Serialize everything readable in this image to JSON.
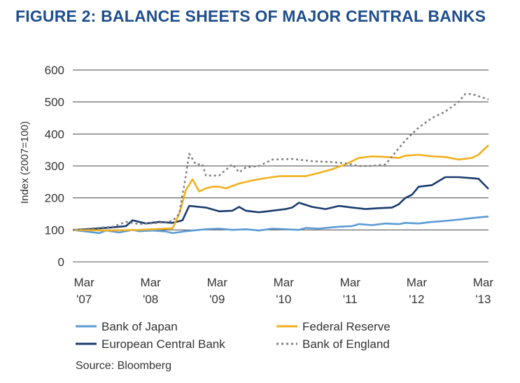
{
  "chart_data": {
    "type": "line",
    "title": "FIGURE 2: BALANCE SHEETS OF MAJOR CENTRAL BANKS",
    "ylabel": "Index (2007=100)",
    "ylim": [
      0,
      600
    ],
    "yticks": [
      "0",
      "100",
      "200",
      "300",
      "400",
      "500",
      "600"
    ],
    "xlim": [
      2007.0,
      2013.25
    ],
    "xticks": [
      {
        "value": 2007.17,
        "line1": "Mar",
        "line2": "'07"
      },
      {
        "value": 2008.17,
        "line1": "Mar",
        "line2": "'08"
      },
      {
        "value": 2009.17,
        "line1": "Mar",
        "line2": "'09"
      },
      {
        "value": 2010.17,
        "line1": "Mar",
        "line2": "'10"
      },
      {
        "value": 2011.17,
        "line1": "Mar",
        "line2": "'11"
      },
      {
        "value": 2012.17,
        "line1": "Mar",
        "line2": "'12"
      },
      {
        "value": 2013.17,
        "line1": "Mar",
        "line2": "'13"
      }
    ],
    "grid": true,
    "legend_position": "bottom",
    "source": "Source: Bloomberg",
    "series": [
      {
        "name": "Bank of Japan",
        "color": "#5b9bd5",
        "dash": "solid",
        "x": [
          2007.0,
          2007.2,
          2007.4,
          2007.5,
          2007.7,
          2007.9,
          2008.0,
          2008.2,
          2008.4,
          2008.5,
          2008.7,
          2008.9,
          2009.0,
          2009.2,
          2009.4,
          2009.6,
          2009.8,
          2010.0,
          2010.2,
          2010.4,
          2010.5,
          2010.7,
          2010.9,
          2011.0,
          2011.2,
          2011.3,
          2011.5,
          2011.7,
          2011.9,
          2012.0,
          2012.2,
          2012.4,
          2012.6,
          2012.8,
          2013.0,
          2013.25
        ],
        "y": [
          100,
          95,
          90,
          98,
          92,
          100,
          96,
          98,
          95,
          90,
          96,
          100,
          102,
          104,
          100,
          102,
          98,
          104,
          102,
          100,
          106,
          104,
          108,
          110,
          112,
          118,
          115,
          120,
          118,
          122,
          120,
          125,
          128,
          132,
          137,
          142
        ]
      },
      {
        "name": "European Central Bank",
        "color": "#1a3b6d",
        "dash": "solid",
        "x": [
          2007.0,
          2007.2,
          2007.4,
          2007.6,
          2007.8,
          2007.9,
          2008.1,
          2008.3,
          2008.5,
          2008.65,
          2008.75,
          2008.9,
          2009.0,
          2009.2,
          2009.4,
          2009.5,
          2009.6,
          2009.8,
          2010.0,
          2010.2,
          2010.3,
          2010.4,
          2010.6,
          2010.8,
          2011.0,
          2011.2,
          2011.4,
          2011.6,
          2011.8,
          2011.9,
          2012.0,
          2012.1,
          2012.2,
          2012.4,
          2012.6,
          2012.8,
          2013.0,
          2013.1,
          2013.25
        ],
        "y": [
          100,
          102,
          105,
          108,
          112,
          130,
          120,
          125,
          122,
          130,
          175,
          172,
          170,
          158,
          160,
          172,
          160,
          155,
          160,
          165,
          170,
          185,
          172,
          165,
          175,
          170,
          165,
          168,
          170,
          180,
          200,
          210,
          235,
          240,
          265,
          265,
          262,
          260,
          228
        ]
      },
      {
        "name": "Federal Reserve",
        "color": "#f2b01e",
        "dash": "solid",
        "x": [
          2007.0,
          2007.5,
          2008.0,
          2008.5,
          2008.6,
          2008.7,
          2008.8,
          2008.9,
          2009.0,
          2009.1,
          2009.2,
          2009.3,
          2009.5,
          2009.7,
          2009.9,
          2010.1,
          2010.3,
          2010.5,
          2010.7,
          2010.9,
          2011.1,
          2011.3,
          2011.5,
          2011.7,
          2011.9,
          2012.0,
          2012.2,
          2012.4,
          2012.6,
          2012.8,
          2013.0,
          2013.1,
          2013.25
        ],
        "y": [
          100,
          98,
          100,
          105,
          150,
          225,
          258,
          220,
          230,
          235,
          235,
          230,
          245,
          255,
          262,
          268,
          268,
          268,
          278,
          290,
          305,
          325,
          330,
          328,
          325,
          332,
          335,
          330,
          328,
          320,
          325,
          335,
          365
        ]
      },
      {
        "name": "Bank of England",
        "color": "#7f7f7f",
        "dash": "dotted",
        "x": [
          2007.0,
          2007.3,
          2007.6,
          2007.8,
          2008.0,
          2008.3,
          2008.5,
          2008.6,
          2008.7,
          2008.75,
          2008.85,
          2008.95,
          2009.0,
          2009.2,
          2009.4,
          2009.5,
          2009.6,
          2009.8,
          2010.0,
          2010.3,
          2010.6,
          2010.9,
          2011.1,
          2011.3,
          2011.5,
          2011.7,
          2011.9,
          2012.0,
          2012.2,
          2012.4,
          2012.6,
          2012.8,
          2012.9,
          2013.0,
          2013.25
        ],
        "y": [
          100,
          105,
          110,
          125,
          118,
          122,
          128,
          150,
          270,
          338,
          305,
          305,
          270,
          270,
          305,
          280,
          295,
          300,
          320,
          322,
          315,
          312,
          308,
          300,
          300,
          305,
          355,
          380,
          420,
          450,
          470,
          500,
          525,
          525,
          508
        ]
      }
    ]
  }
}
